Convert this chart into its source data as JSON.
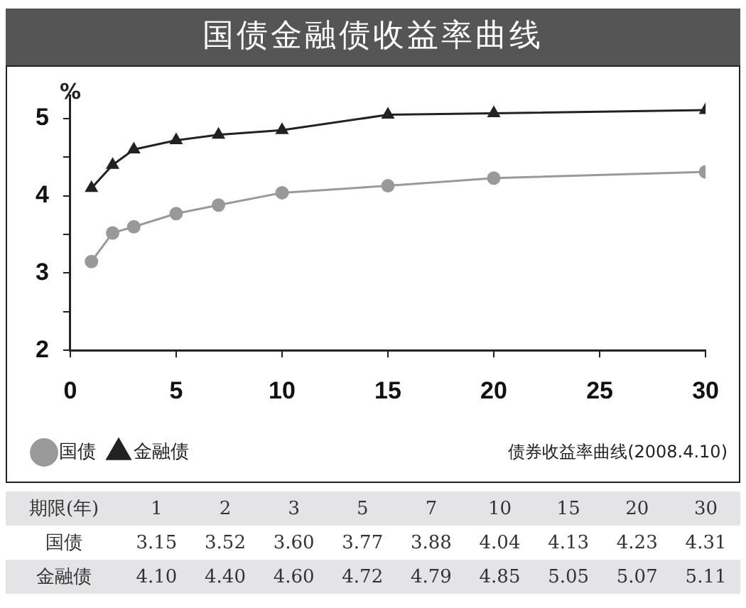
{
  "chart_data": [
    {
      "type": "line",
      "title": "国债金融债收益率曲线",
      "ylabel": "%",
      "x": [
        1,
        2,
        3,
        5,
        7,
        10,
        15,
        20,
        30
      ],
      "series": [
        {
          "name": "国债",
          "color": "#999999",
          "marker": "circle",
          "values": [
            3.15,
            3.52,
            3.6,
            3.77,
            3.88,
            4.04,
            4.13,
            4.23,
            4.31
          ]
        },
        {
          "name": "金融债",
          "color": "#222222",
          "marker": "triangle",
          "values": [
            4.1,
            4.4,
            4.6,
            4.72,
            4.79,
            4.85,
            5.05,
            5.07,
            5.11
          ]
        }
      ],
      "xlim": [
        0,
        30
      ],
      "xticks": [
        0,
        5,
        10,
        15,
        20,
        25,
        30
      ],
      "ylim": [
        2,
        5.3
      ],
      "yticks": [
        2,
        {
          "value": 2.5,
          "label": null
        },
        3,
        {
          "value": 3.5,
          "label": null
        },
        4,
        {
          "value": 4.5,
          "label": null
        },
        5
      ],
      "grid": false,
      "legend": "bottom",
      "annotations": [
        "债券收益率曲线(2008.4.10)"
      ]
    },
    {
      "type": "other",
      "xlabel": "期限(年)",
      "categories": [
        "1",
        "2",
        "3",
        "5",
        "7",
        "10",
        "15",
        "20",
        "30"
      ],
      "series": [
        {
          "name": "国债",
          "values": [
            3.15,
            3.52,
            3.6,
            3.77,
            3.88,
            4.04,
            4.13,
            4.23,
            4.31
          ],
          "value_labels": [
            "3.15",
            "3.52",
            "3.60",
            "3.77",
            "3.88",
            "4.04",
            "4.13",
            "4.23",
            "4.31"
          ]
        },
        {
          "name": "金融债",
          "values": [
            4.1,
            4.4,
            4.6,
            4.72,
            4.79,
            4.85,
            5.05,
            5.07,
            5.11
          ],
          "value_labels": [
            "4.10",
            "4.40",
            "4.60",
            "4.72",
            "4.79",
            "4.85",
            "5.05",
            "5.07",
            "5.11"
          ]
        }
      ]
    }
  ]
}
